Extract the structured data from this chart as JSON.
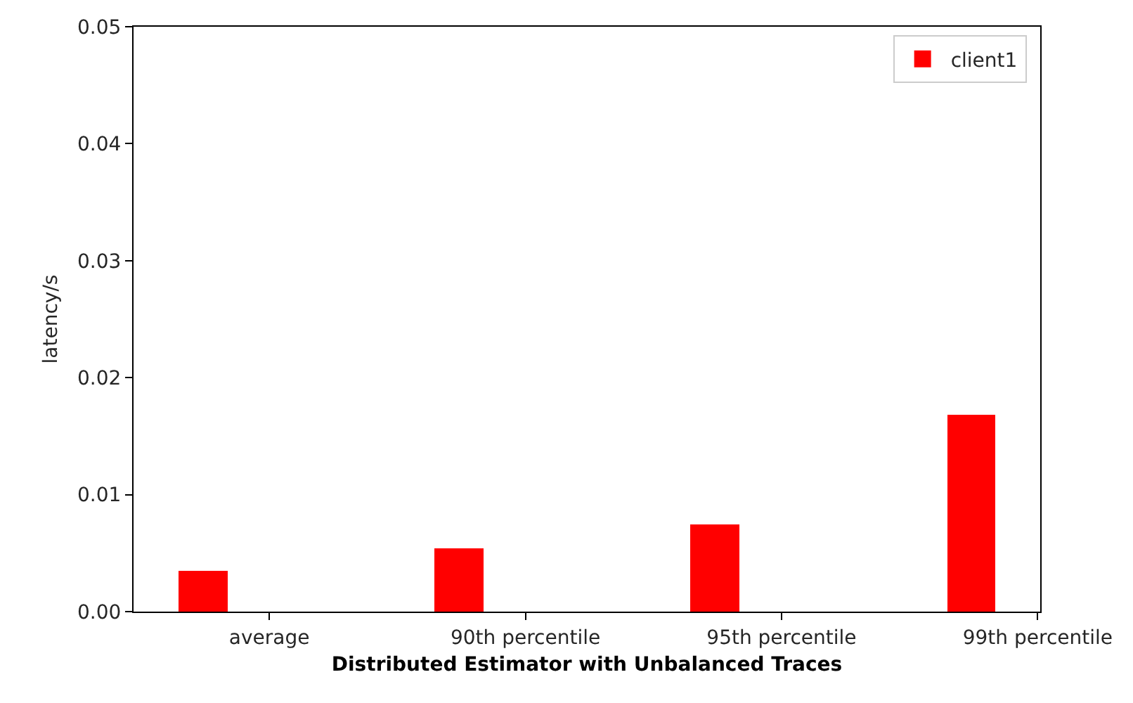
{
  "chart_data": {
    "type": "bar",
    "xlabel": "Distributed Estimator with Unbalanced Traces",
    "ylabel": "latency/s",
    "categories": [
      "average",
      "90th percentile",
      "95th percentile",
      "99th percentile"
    ],
    "series": [
      {
        "name": "client1",
        "color": "#ff0000",
        "values": [
          0.0035,
          0.0054,
          0.0074,
          0.0168
        ]
      }
    ],
    "ylim": [
      0,
      0.05
    ],
    "yticks": [
      {
        "value": 0,
        "label": "0.00"
      },
      {
        "value": 0.01,
        "label": "0.01"
      },
      {
        "value": 0.02,
        "label": "0.02"
      },
      {
        "value": 0.03,
        "label": "0.03"
      },
      {
        "value": 0.04,
        "label": "0.04"
      },
      {
        "value": 0.05,
        "label": "0.05"
      }
    ],
    "legend": "top right"
  }
}
